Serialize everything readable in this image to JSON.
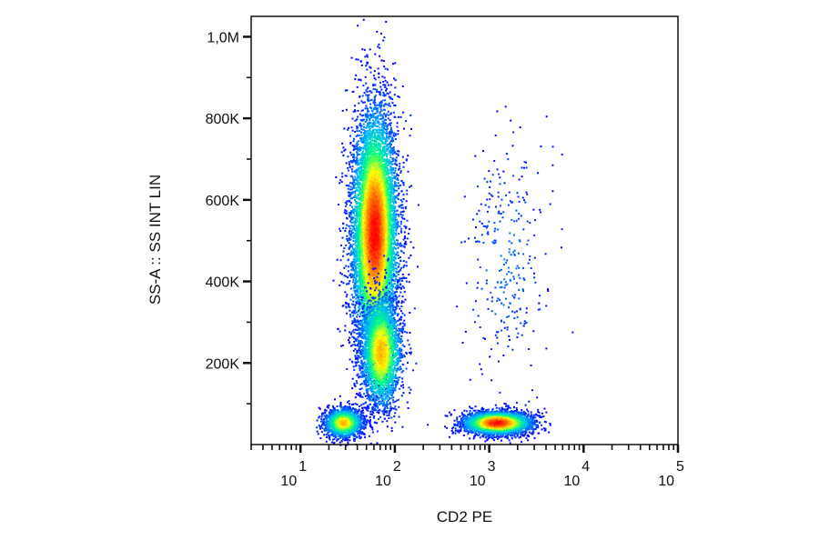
{
  "chart_data": {
    "type": "scatter",
    "subtype": "flow-cytometry-density-dot-plot",
    "title": "",
    "xlabel": "CD2 PE",
    "ylabel": "SS-A :: SS INT LIN",
    "x_scale": "log",
    "y_scale": "linear",
    "xlim": [
      3,
      100000
    ],
    "ylim": [
      0,
      1050000
    ],
    "grid": false,
    "legend": "none",
    "x_tick_labels": [
      {
        "value": 10,
        "base": "10",
        "exp": "1"
      },
      {
        "value": 100,
        "base": "10",
        "exp": "2"
      },
      {
        "value": 1000,
        "base": "10",
        "exp": "3"
      },
      {
        "value": 10000,
        "base": "10",
        "exp": "4"
      },
      {
        "value": 100000,
        "base": "10",
        "exp": "5"
      }
    ],
    "y_tick_labels": [
      {
        "value": 200000,
        "label": "200K"
      },
      {
        "value": 400000,
        "label": "400K"
      },
      {
        "value": 600000,
        "label": "600K"
      },
      {
        "value": 800000,
        "label": "800K"
      },
      {
        "value": 1000000,
        "label": "1,0M"
      }
    ],
    "density_colormap": [
      "#0000ff",
      "#00b4ff",
      "#00ff80",
      "#ffff00",
      "#ff8000",
      "#ff0000"
    ],
    "populations": [
      {
        "x_center": 60,
        "y_center": 520000,
        "x_spread_decades": 0.12,
        "y_spread": 150000,
        "events": 9000,
        "peak_density": "high"
      },
      {
        "x_center": 70,
        "y_center": 230000,
        "x_spread_decades": 0.11,
        "y_spread": 70000,
        "events": 2500,
        "peak_density": "medium"
      },
      {
        "x_center": 28,
        "y_center": 55000,
        "x_spread_decades": 0.1,
        "y_spread": 18000,
        "events": 1800,
        "peak_density": "medium"
      },
      {
        "x_center": 1200,
        "y_center": 55000,
        "x_spread_decades": 0.18,
        "y_spread": 14000,
        "events": 3500,
        "peak_density": "high"
      },
      {
        "x_center": 1500,
        "y_center": 450000,
        "x_spread_decades": 0.22,
        "y_spread": 150000,
        "events": 300,
        "peak_density": "low"
      }
    ]
  }
}
